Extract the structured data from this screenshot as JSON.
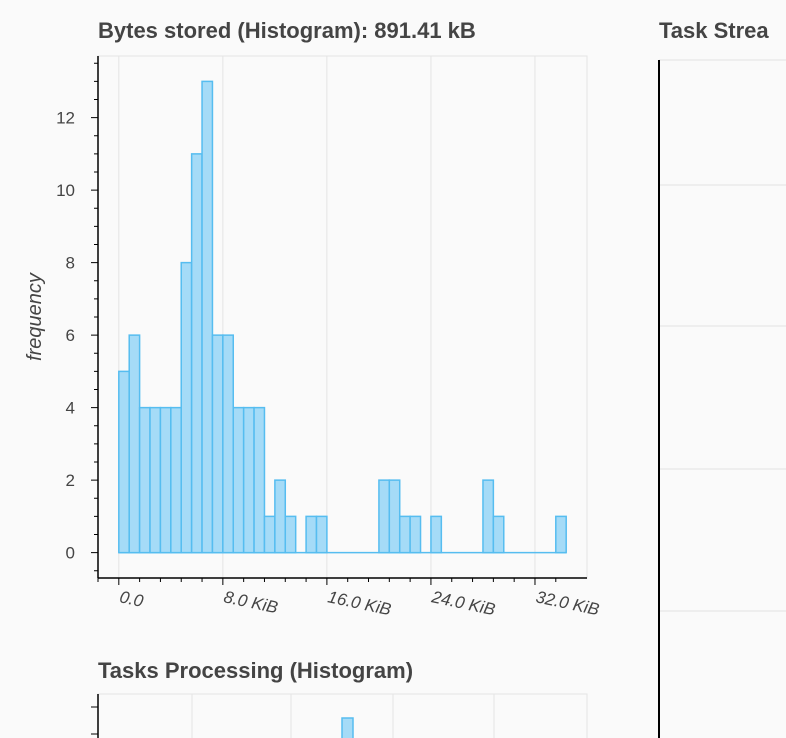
{
  "panels": {
    "bytes_stored": {
      "title": "Bytes stored (Histogram): 891.41 kB"
    },
    "tasks_processing": {
      "title": "Tasks Processing (Histogram)"
    },
    "task_stream": {
      "title": "Task Strea"
    }
  },
  "chart_data": [
    {
      "type": "bar",
      "title": "Bytes stored (Histogram): 891.41 kB",
      "xlabel": "",
      "ylabel": "frequency",
      "bin_width": 0.8,
      "x": [
        0.0,
        0.8,
        1.6,
        2.4,
        3.2,
        4.0,
        4.8,
        5.6,
        6.4,
        7.2,
        8.0,
        8.8,
        9.6,
        10.4,
        11.2,
        12.0,
        12.8,
        13.6,
        14.4,
        15.2,
        16.0,
        16.8,
        17.6,
        18.4,
        19.2,
        20.0,
        20.8,
        21.6,
        22.4,
        23.2,
        24.0,
        24.8,
        25.6,
        26.4,
        27.2,
        28.0,
        28.8,
        29.6,
        30.4,
        31.2,
        32.0,
        32.8,
        33.6
      ],
      "values": [
        5,
        6,
        4,
        4,
        4,
        4,
        8,
        11,
        13,
        6,
        6,
        4,
        4,
        4,
        1,
        2,
        1,
        0,
        1,
        1,
        0,
        0,
        0,
        0,
        0,
        2,
        2,
        1,
        1,
        0,
        1,
        0,
        0,
        0,
        0,
        2,
        1,
        0,
        0,
        0,
        0,
        0,
        1
      ],
      "x_ticks": [
        0,
        8,
        16,
        24,
        32
      ],
      "x_tick_labels": [
        "0.0",
        "8.0 KiB",
        "16.0 KiB",
        "24.0 KiB",
        "32.0 KiB"
      ],
      "y_ticks": [
        0,
        2,
        4,
        6,
        8,
        10,
        12
      ],
      "y_tick_labels": [
        "0",
        "2",
        "4",
        "6",
        "8",
        "10",
        "12"
      ],
      "xlim": [
        -1.6,
        36.0
      ],
      "ylim": [
        -0.7,
        13.7
      ],
      "grid": true,
      "color": "#a5dbf7",
      "line_color": "#56bdf0"
    },
    {
      "type": "bar",
      "title": "Tasks Processing (Histogram)",
      "x": [
        6.0
      ],
      "values": [
        1
      ],
      "xlim": [
        -1.6,
        16.0
      ],
      "ylim": [
        0,
        1
      ],
      "grid": true,
      "color": "#a5dbf7",
      "line_color": "#56bdf0"
    }
  ]
}
